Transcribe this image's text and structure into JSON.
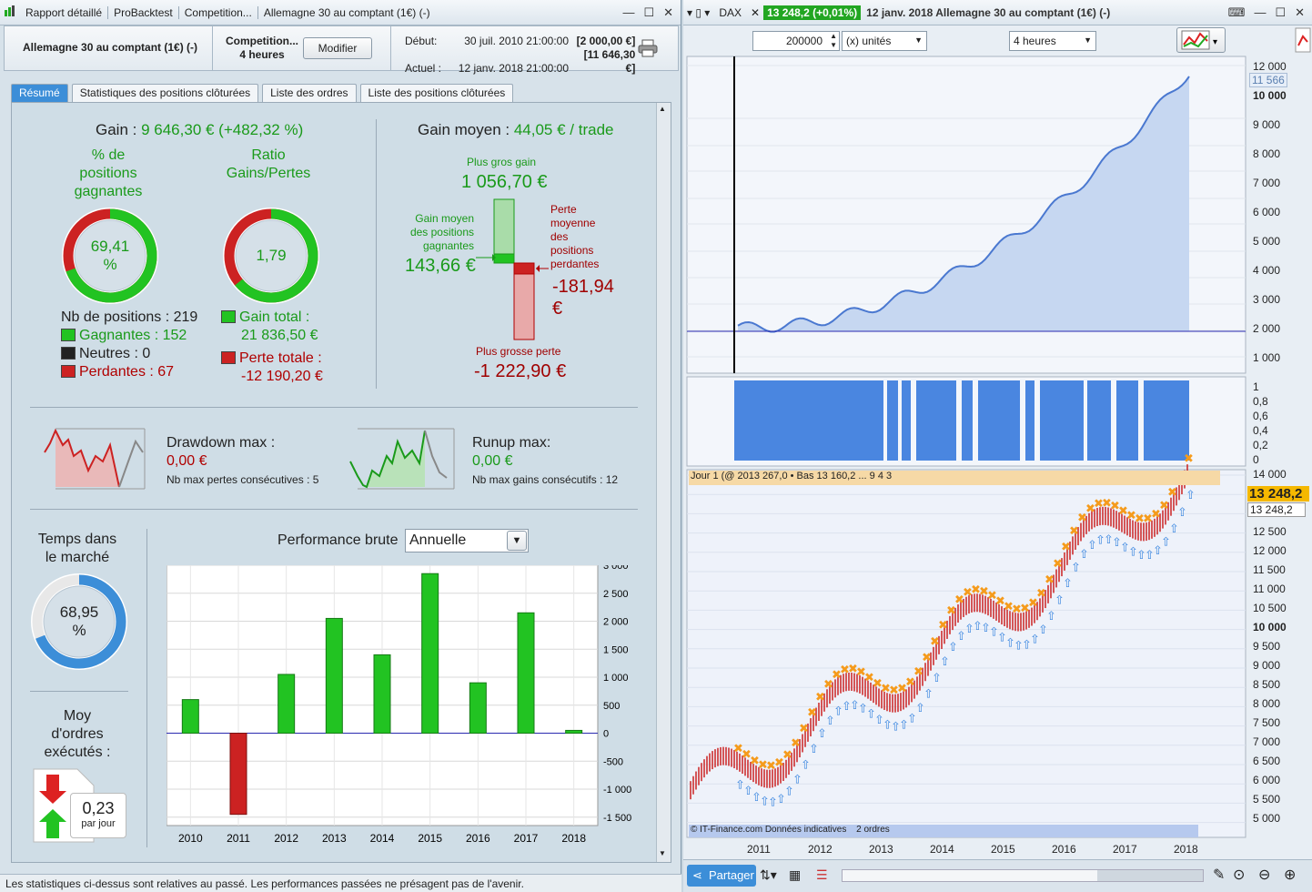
{
  "left_window": {
    "title_segments": [
      "Rapport détaillé",
      "ProBacktest",
      "Competition...",
      "Allemagne 30 au comptant (1€) (-)"
    ],
    "header": {
      "instrument": "Allemagne 30 au comptant (1€) (-)",
      "system_name": "Competition...",
      "timeframe": "4 heures",
      "modify_button": "Modifier",
      "start_label": "Début:",
      "start_date": "30 juil. 2010 21:00:00",
      "start_value": "[2 000,00 €]",
      "current_label": "Actuel :",
      "current_date": "12 janv. 2018 21:00:00",
      "current_value": "[11 646,30 €]"
    },
    "tabs": [
      "Résumé",
      "Statistiques des positions clôturées",
      "Liste des ordres",
      "Liste des positions clôturées"
    ],
    "gain_label": "Gain :",
    "gain_value": "9 646,30 € (+482,32 %)",
    "pct_winning_title": "% de positions gagnantes",
    "pct_winning_value": "69,41",
    "pct_winning_unit": "%",
    "pct_winning_fraction": 0.6941,
    "ratio_title": "Ratio Gains/Pertes",
    "ratio_value": "1,79",
    "ratio_fraction": 0.64,
    "nb_positions_label": "Nb de positions : 219",
    "winning_label": "Gagnantes : 152",
    "neutral_label": "Neutres : 0",
    "losing_label": "Perdantes : 67",
    "total_gain_label": "Gain total :",
    "total_gain_value": "21 836,50 €",
    "total_loss_label": "Perte totale :",
    "total_loss_value": "-12 190,20 €",
    "avg_gain_label": "Gain moyen :",
    "avg_gain_value": "44,05 € / trade",
    "biggest_gain_label": "Plus gros gain",
    "biggest_gain_value": "1 056,70 €",
    "avg_winning_label": "Gain moyen des positions gagnantes",
    "avg_winning_value": "143,66 €",
    "avg_losing_label": "Perte moyenne des positions perdantes",
    "avg_losing_value": "-181,94 €",
    "biggest_loss_label": "Plus grosse perte",
    "biggest_loss_value": "-1 222,90 €",
    "drawdown_label": "Drawdown max :",
    "drawdown_value": "0,00 €",
    "max_losses_label": "Nb max pertes consécutives : 5",
    "runup_label": "Runup max:",
    "runup_value": "0,00 €",
    "max_gains_label": "Nb max gains consécutifs : 12",
    "time_in_market_title": "Temps dans le marché",
    "time_in_market_value": "68,95",
    "time_in_market_unit": "%",
    "time_in_market_fraction": 0.6895,
    "avg_orders_title": "Moy d'ordres exécutés :",
    "avg_orders_value": "0,23",
    "avg_orders_unit": "par jour",
    "performance_label": "Performance brute",
    "performance_select": "Annuelle",
    "disclaimer": "Les statistiques ci-dessus sont relatives au passé. Les performances passées ne présagent pas de l'avenir.",
    "colors": {
      "green": "#22c322",
      "red": "#cc2222",
      "blue": "#3c8ed8"
    }
  },
  "chart_data": {
    "type": "bar",
    "categories": [
      "2010",
      "2011",
      "2012",
      "2013",
      "2014",
      "2015",
      "2016",
      "2017",
      "2018"
    ],
    "values": [
      600,
      -1450,
      1050,
      2050,
      1400,
      2850,
      900,
      2150,
      50
    ],
    "ylim": [
      -1650,
      3000
    ],
    "yticks": [
      3000,
      2500,
      2000,
      1500,
      1000,
      500,
      0,
      -500,
      -1000,
      -1500
    ],
    "ytick_labels": [
      "3 000",
      "2 500",
      "2 000",
      "1 500",
      "1 000",
      "500",
      "0",
      "-500",
      "-1 000",
      "-1 500"
    ],
    "grid": true
  },
  "right_window": {
    "symbol": "DAX",
    "price_badge": "13 248,2 (+0,01%)",
    "title": "12 janv. 2018 Allemagne 30 au comptant (1€) (-)",
    "quantity": "200000",
    "units": "(x) unités",
    "timeframe": "4 heures",
    "equity_axis": [
      "12 000",
      "10 000",
      "9 000",
      "8 000",
      "7 000",
      "6 000",
      "5 000",
      "4 000",
      "3 000",
      "2 000",
      "1 000"
    ],
    "equity_last": "11 566",
    "position_axis": [
      "1",
      "0,8",
      "0,6",
      "0,4",
      "0,2",
      "0"
    ],
    "price_axis": [
      "14 000",
      "13 500",
      "13 000",
      "12 500",
      "12 000",
      "11 500",
      "11 000",
      "10 500",
      "10 000",
      "9 500",
      "9 000",
      "8 500",
      "8 000",
      "7 500",
      "7 000",
      "6 500",
      "6 000",
      "5 500",
      "5 000"
    ],
    "price_last_highlight": "13 248,2",
    "price_last": "13 248,2",
    "price_header": "Jour 1 (@ 2013 267,0 • Bas 13 160,2 ... 9 4 3",
    "copyright": "© IT-Finance.com Données indicatives",
    "orders_label": "2 ordres",
    "x_years": [
      "2011",
      "2012",
      "2013",
      "2014",
      "2015",
      "2016",
      "2017",
      "2018"
    ],
    "share_button": "Partager"
  }
}
